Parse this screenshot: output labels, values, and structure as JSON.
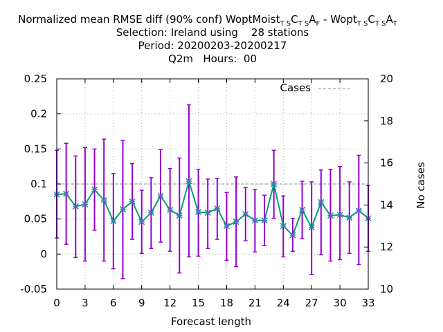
{
  "chart_data": {
    "type": "line",
    "title_lines": [
      "Normalized mean RMSE diff (90% conf) WoptMoist",
      "Selection: Ireland using    28 stations",
      "Period: 20200203-20200217",
      "Q2m   Hours:  00"
    ],
    "title_parts": {
      "a": "Normalized mean RMSE diff (90% conf) WoptMoist",
      "sub_a1": "T S",
      "b1": "C",
      "sub_a2": "T S",
      "c1": "A",
      "sub_a3": "F",
      "dash": " - Wopt",
      "sub_b1": "T S",
      "b2": "C",
      "sub_b2": "T S",
      "c2": "A",
      "sub_b3": "T"
    },
    "xlabel": "Forecast length",
    "ylabel_right": "No cases",
    "xlim": [
      0,
      33
    ],
    "ylim": [
      -0.05,
      0.25
    ],
    "y2lim": [
      10,
      20
    ],
    "x_ticks": [
      0,
      3,
      6,
      9,
      12,
      15,
      18,
      21,
      24,
      27,
      30,
      33
    ],
    "y_ticks": [
      -0.05,
      0,
      0.05,
      0.1,
      0.15,
      0.2,
      0.25
    ],
    "y_tick_labels": [
      "-0.05",
      "0",
      "0.05",
      "0.1",
      "0.15",
      "0.2",
      "0.25"
    ],
    "y2_ticks": [
      10,
      12,
      14,
      16,
      18,
      20
    ],
    "grid": true,
    "legend": {
      "position": "top-right",
      "label": "Cases"
    },
    "colors": {
      "mean": "#009e73",
      "errorbar": "#9400d3",
      "marker": "#3f7fb0",
      "cases": "#a0a0a0"
    },
    "x": [
      0,
      1,
      2,
      3,
      4,
      5,
      6,
      7,
      8,
      9,
      10,
      11,
      12,
      13,
      14,
      15,
      16,
      17,
      18,
      19,
      20,
      21,
      22,
      23,
      24,
      25,
      26,
      27,
      28,
      29,
      30,
      31,
      32,
      33
    ],
    "mean": [
      0.085,
      0.086,
      0.068,
      0.071,
      0.092,
      0.077,
      0.047,
      0.064,
      0.075,
      0.046,
      0.059,
      0.083,
      0.063,
      0.055,
      0.104,
      0.06,
      0.059,
      0.065,
      0.04,
      0.046,
      0.057,
      0.048,
      0.048,
      0.1,
      0.04,
      0.027,
      0.063,
      0.038,
      0.074,
      0.055,
      0.056,
      0.052,
      0.062,
      0.051
    ],
    "upper": [
      0.148,
      0.158,
      0.14,
      0.152,
      0.15,
      0.164,
      0.115,
      0.162,
      0.129,
      0.091,
      0.109,
      0.149,
      0.122,
      0.137,
      0.213,
      0.121,
      0.107,
      0.108,
      0.088,
      0.11,
      0.095,
      0.092,
      0.084,
      0.148,
      0.083,
      0.051,
      0.104,
      0.103,
      0.12,
      0.121,
      0.125,
      0.103,
      0.141,
      0.098
    ],
    "lower": [
      0.023,
      0.014,
      -0.005,
      -0.01,
      0.034,
      -0.01,
      -0.021,
      -0.035,
      0.021,
      0.001,
      0.008,
      0.017,
      0.004,
      -0.027,
      -0.004,
      -0.003,
      0.008,
      0.021,
      -0.009,
      -0.018,
      0.019,
      0.003,
      0.012,
      0.051,
      -0.004,
      0.004,
      0.022,
      -0.029,
      -0.001,
      -0.01,
      -0.008,
      0.001,
      -0.015,
      0.004
    ],
    "cases": 15
  }
}
